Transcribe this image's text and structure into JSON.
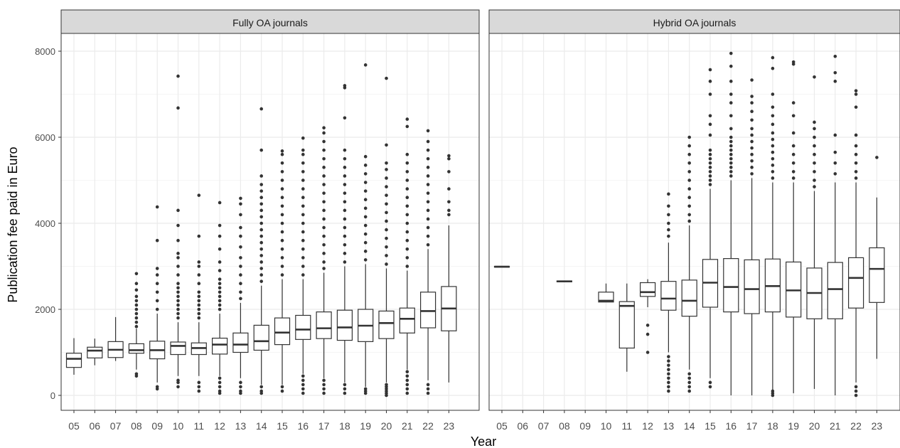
{
  "chart_data": {
    "type": "boxplot",
    "ylabel": "Publication fee paid in Euro",
    "xlabel": "Year",
    "ylim": [
      -300,
      8350
    ],
    "yticks": [
      0,
      2000,
      4000,
      6000,
      8000
    ],
    "ytick_labels": [
      "0",
      "2000",
      "4000",
      "6000",
      "8000"
    ],
    "categories": [
      "05",
      "06",
      "07",
      "08",
      "09",
      "10",
      "11",
      "12",
      "13",
      "14",
      "15",
      "16",
      "17",
      "18",
      "19",
      "20",
      "21",
      "22",
      "23"
    ],
    "grid": true,
    "colors": {
      "panel_bg": "#ffffff",
      "strip_bg": "#d9d9d9",
      "box": "#333333",
      "grid": "#ebebeb"
    },
    "panels": [
      {
        "title": "Fully OA journals",
        "boxes": [
          {
            "x": "05",
            "q1": 650,
            "med": 850,
            "q3": 980,
            "wlo": 480,
            "whi": 1330,
            "out": []
          },
          {
            "x": "06",
            "q1": 870,
            "med": 1040,
            "q3": 1120,
            "wlo": 700,
            "whi": 1320,
            "out": []
          },
          {
            "x": "07",
            "q1": 880,
            "med": 1060,
            "q3": 1250,
            "wlo": 800,
            "whi": 1820,
            "out": []
          },
          {
            "x": "08",
            "q1": 980,
            "med": 1050,
            "q3": 1200,
            "wlo": 600,
            "whi": 1550,
            "out": [
              1600,
              1700,
              1800,
              1900,
              2000,
              2100,
              2200,
              2300,
              2450,
              2600,
              2830,
              450,
              500
            ]
          },
          {
            "x": "09",
            "q1": 850,
            "med": 1050,
            "q3": 1260,
            "wlo": 300,
            "whi": 1900,
            "out": [
              2000,
              2200,
              2400,
              2600,
              2800,
              2950,
              3600,
              4380,
              150,
              200
            ]
          },
          {
            "x": "10",
            "q1": 950,
            "med": 1150,
            "q3": 1240,
            "wlo": 450,
            "whi": 1700,
            "out": [
              1800,
              1900,
              2000,
              2100,
              2200,
              2300,
              2400,
              2500,
              2600,
              2800,
              3000,
              3200,
              3300,
              3600,
              3950,
              4300,
              6680,
              7420,
              200,
              300,
              350
            ]
          },
          {
            "x": "11",
            "q1": 950,
            "med": 1100,
            "q3": 1220,
            "wlo": 450,
            "whi": 1700,
            "out": [
              1800,
              1900,
              2000,
              2100,
              2200,
              2300,
              2400,
              2600,
              2800,
              3000,
              3100,
              3700,
              4650,
              100,
              200,
              300
            ]
          },
          {
            "x": "12",
            "q1": 960,
            "med": 1180,
            "q3": 1330,
            "wlo": 450,
            "whi": 1900,
            "out": [
              2000,
              2100,
              2200,
              2300,
              2400,
              2500,
              2600,
              2700,
              2900,
              3100,
              3400,
              3700,
              3950,
              4480,
              50,
              100,
              200,
              300,
              400
            ]
          },
          {
            "x": "13",
            "q1": 1000,
            "med": 1180,
            "q3": 1450,
            "wlo": 400,
            "whi": 2150,
            "out": [
              2250,
              2400,
              2600,
              2800,
              3000,
              3200,
              3450,
              3700,
              3900,
              4200,
              4450,
              4580,
              50,
              100,
              200,
              300
            ]
          },
          {
            "x": "14",
            "q1": 1050,
            "med": 1260,
            "q3": 1630,
            "wlo": 250,
            "whi": 2550,
            "out": [
              2650,
              2800,
              2950,
              3100,
              3250,
              3400,
              3550,
              3700,
              3850,
              4000,
              4150,
              4300,
              4450,
              4600,
              4750,
              4900,
              5100,
              5700,
              6660,
              50,
              100,
              200
            ]
          },
          {
            "x": "15",
            "q1": 1180,
            "med": 1460,
            "q3": 1800,
            "wlo": 250,
            "whi": 2700,
            "out": [
              2800,
              3000,
              3200,
              3400,
              3600,
              3800,
              4000,
              4200,
              4400,
              4600,
              4800,
              5000,
              5200,
              5400,
              5600,
              5680,
              100,
              200
            ]
          },
          {
            "x": "16",
            "q1": 1300,
            "med": 1530,
            "q3": 1860,
            "wlo": 500,
            "whi": 2700,
            "out": [
              2800,
              3000,
              3200,
              3400,
              3600,
              3800,
              4000,
              4200,
              4400,
              4600,
              4800,
              5000,
              5200,
              5400,
              5600,
              5700,
              5980,
              50,
              150,
              250,
              350,
              450
            ]
          },
          {
            "x": "17",
            "q1": 1320,
            "med": 1560,
            "q3": 1940,
            "wlo": 400,
            "whi": 2850,
            "out": [
              2950,
              3100,
              3300,
              3500,
              3700,
              3900,
              4100,
              4300,
              4500,
              4700,
              4900,
              5100,
              5300,
              5500,
              5700,
              5900,
              6100,
              6220,
              50,
              150,
              250,
              350
            ]
          },
          {
            "x": "18",
            "q1": 1280,
            "med": 1580,
            "q3": 1980,
            "wlo": 300,
            "whi": 3000,
            "out": [
              3100,
              3300,
              3500,
              3700,
              3900,
              4100,
              4300,
              4500,
              4700,
              4900,
              5100,
              5300,
              5500,
              5700,
              6450,
              7150,
              7200,
              50,
              150,
              250
            ]
          },
          {
            "x": "19",
            "q1": 1250,
            "med": 1620,
            "q3": 2000,
            "wlo": 200,
            "whi": 3050,
            "out": [
              3150,
              3350,
              3550,
              3750,
              3950,
              4150,
              4350,
              4550,
              4750,
              4950,
              5150,
              5350,
              5550,
              7680,
              50,
              100,
              150
            ]
          },
          {
            "x": "20",
            "q1": 1320,
            "med": 1680,
            "q3": 1960,
            "wlo": 300,
            "whi": 2950,
            "out": [
              3050,
              3250,
              3450,
              3650,
              3850,
              4050,
              4250,
              4450,
              4650,
              4850,
              5050,
              5250,
              5400,
              5820,
              7370,
              0,
              50,
              100,
              150,
              200,
              250
            ]
          },
          {
            "x": "21",
            "q1": 1450,
            "med": 1780,
            "q3": 2030,
            "wlo": 600,
            "whi": 2900,
            "out": [
              3000,
              3200,
              3400,
              3600,
              3800,
              4000,
              4200,
              4400,
              4600,
              4800,
              5000,
              5200,
              5400,
              5600,
              6250,
              6420,
              50,
              150,
              250,
              350,
              450,
              550
            ]
          },
          {
            "x": "22",
            "q1": 1570,
            "med": 1960,
            "q3": 2400,
            "wlo": 350,
            "whi": 3400,
            "out": [
              3500,
              3700,
              3900,
              4100,
              4300,
              4500,
              4700,
              4900,
              5100,
              5300,
              5500,
              5700,
              5900,
              6150,
              50,
              150,
              250
            ]
          },
          {
            "x": "23",
            "q1": 1500,
            "med": 2020,
            "q3": 2530,
            "wlo": 300,
            "whi": 3950,
            "out": [
              4200,
              4300,
              4500,
              4800,
              5200,
              5500,
              5570
            ]
          }
        ]
      },
      {
        "title": "Hybrid OA journals",
        "boxes": [
          {
            "x": "05",
            "q1": 2980,
            "med": 2990,
            "q3": 3000,
            "wlo": 2980,
            "whi": 3000,
            "out": []
          },
          {
            "x": "08",
            "q1": 2640,
            "med": 2650,
            "q3": 2660,
            "wlo": 2640,
            "whi": 2660,
            "out": []
          },
          {
            "x": "10",
            "q1": 2170,
            "med": 2200,
            "q3": 2400,
            "wlo": 2170,
            "whi": 2600,
            "out": []
          },
          {
            "x": "11",
            "q1": 1100,
            "med": 2080,
            "q3": 2180,
            "wlo": 550,
            "whi": 2600,
            "out": []
          },
          {
            "x": "12",
            "q1": 2300,
            "med": 2400,
            "q3": 2620,
            "wlo": 2050,
            "whi": 2700,
            "out": [
              1630,
              1420,
              1000
            ]
          },
          {
            "x": "13",
            "q1": 1980,
            "med": 2250,
            "q3": 2650,
            "wlo": 1000,
            "whi": 3550,
            "out": [
              3700,
              3850,
              4000,
              4200,
              4400,
              4680,
              100,
              200,
              300,
              400,
              500,
              600,
              700,
              800,
              900
            ]
          },
          {
            "x": "14",
            "q1": 1840,
            "med": 2200,
            "q3": 2680,
            "wlo": 600,
            "whi": 3950,
            "out": [
              4050,
              4200,
              4400,
              4600,
              4800,
              5000,
              5200,
              5400,
              5600,
              5800,
              6000,
              100,
              200,
              300,
              400,
              500
            ]
          },
          {
            "x": "15",
            "q1": 2050,
            "med": 2620,
            "q3": 3160,
            "wlo": 400,
            "whi": 4800,
            "out": [
              4900,
              5000,
              5100,
              5200,
              5300,
              5400,
              5500,
              5600,
              5700,
              6050,
              6300,
              6500,
              7000,
              7300,
              7570,
              200,
              300
            ]
          },
          {
            "x": "16",
            "q1": 1940,
            "med": 2520,
            "q3": 3180,
            "wlo": 0,
            "whi": 5000,
            "out": [
              5100,
              5200,
              5300,
              5400,
              5500,
              5600,
              5700,
              5800,
              5900,
              6000,
              6200,
              6500,
              6800,
              7000,
              7300,
              7650,
              7950
            ]
          },
          {
            "x": "17",
            "q1": 1900,
            "med": 2470,
            "q3": 3150,
            "wlo": 0,
            "whi": 5050,
            "out": [
              5150,
              5300,
              5450,
              5600,
              5750,
              5900,
              6050,
              6200,
              6400,
              6600,
              6800,
              6950,
              7330
            ]
          },
          {
            "x": "18",
            "q1": 1940,
            "med": 2540,
            "q3": 3170,
            "wlo": 0,
            "whi": 4950,
            "out": [
              5050,
              5200,
              5350,
              5500,
              5650,
              5800,
              5950,
              6100,
              6300,
              6500,
              6700,
              7000,
              7600,
              7850,
              0,
              50,
              100
            ]
          },
          {
            "x": "19",
            "q1": 1820,
            "med": 2440,
            "q3": 3100,
            "wlo": 50,
            "whi": 4950,
            "out": [
              5050,
              5200,
              5400,
              5600,
              5800,
              6100,
              6500,
              6800,
              7700,
              7750
            ]
          },
          {
            "x": "20",
            "q1": 1780,
            "med": 2380,
            "q3": 2960,
            "wlo": 150,
            "whi": 4750,
            "out": [
              4850,
              5000,
              5200,
              5400,
              5600,
              5800,
              6000,
              6200,
              6350,
              7400
            ]
          },
          {
            "x": "21",
            "q1": 1780,
            "med": 2470,
            "q3": 3090,
            "wlo": 0,
            "whi": 4950,
            "out": [
              5150,
              5400,
              5650,
              6050,
              7300,
              7500,
              7880
            ]
          },
          {
            "x": "22",
            "q1": 2030,
            "med": 2730,
            "q3": 3200,
            "wlo": 300,
            "whi": 4950,
            "out": [
              5050,
              5200,
              5400,
              5600,
              5800,
              6050,
              6700,
              7000,
              7080,
              0,
              100,
              200
            ]
          },
          {
            "x": "23",
            "q1": 2160,
            "med": 2940,
            "q3": 3430,
            "wlo": 850,
            "whi": 4600,
            "out": [
              5530
            ]
          }
        ]
      }
    ]
  }
}
